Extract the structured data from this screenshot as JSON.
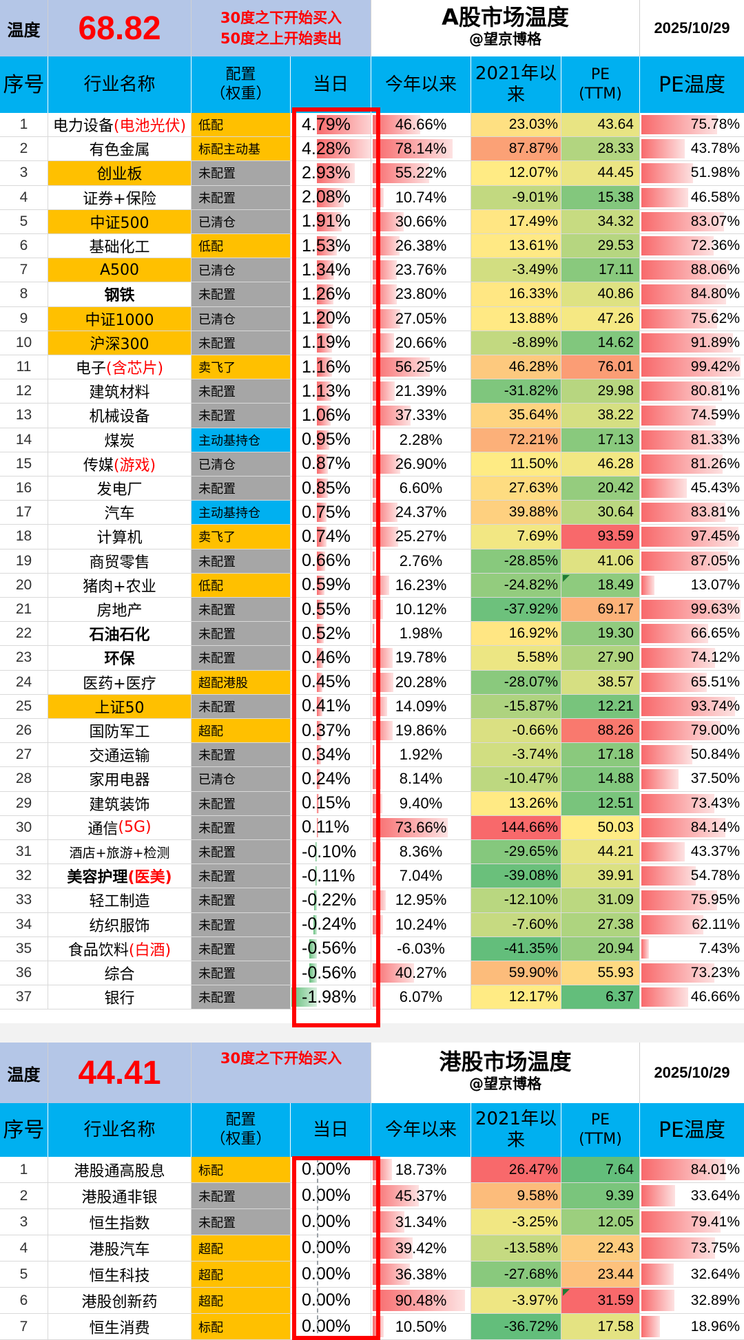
{
  "a_share": {
    "temp_label": "温度",
    "temperature": "68.82",
    "rule_buy": "30度之下开始买入",
    "rule_sell": "50度之上开始卖出",
    "title": "A股市场温度",
    "subtitle": "@望京博格",
    "date": "2025/10/29"
  },
  "hk_share": {
    "temp_label": "温度",
    "temperature": "44.41",
    "rule_buy": "30度之下开始买入",
    "title": "港股市场温度",
    "subtitle": "@望京博格",
    "date": "2025/10/29"
  },
  "columns": {
    "idx": "序号",
    "name": "行业名称",
    "cfg_1": "配置",
    "cfg_2": "（权重）",
    "day": "当日",
    "ytd": "今年以来",
    "since2021_1": "2021年以",
    "since2021_2": "来",
    "pe_1": "PE",
    "pe_2": "(TTM)",
    "pe_temp": "PE温度"
  },
  "colors": {
    "header_blue": "#00b0f0",
    "temp_bg": "#b4c6e7",
    "highlight_orange": "#ffc000",
    "config_gray": "#a6a6a6",
    "alert_red": "#ff0000"
  },
  "a_rows": [
    {
      "idx": "1",
      "name": "电力设备",
      "name_red": "(电池光伏)",
      "hl": false,
      "bold": false,
      "cfg": "低配",
      "cfg_color": "y",
      "day": "4.79%",
      "day_val": 4.79,
      "ytd": "46.66%",
      "ytd_val": 46.66,
      "s21": "23.03%",
      "s21_val": 23.03,
      "pe": "43.64",
      "pe_val": 43.64,
      "pet": "75.78%",
      "pet_val": 75.78
    },
    {
      "idx": "2",
      "name": "有色金属",
      "name_red": "",
      "hl": false,
      "bold": false,
      "cfg": "标配主动基",
      "cfg_color": "y",
      "day": "4.28%",
      "day_val": 4.28,
      "ytd": "78.14%",
      "ytd_val": 78.14,
      "s21": "87.87%",
      "s21_val": 87.87,
      "pe": "28.33",
      "pe_val": 28.33,
      "pet": "43.78%",
      "pet_val": 43.78
    },
    {
      "idx": "3",
      "name": "创业板",
      "name_red": "",
      "hl": true,
      "bold": false,
      "cfg": "未配置",
      "cfg_color": "g",
      "day": "2.93%",
      "day_val": 2.93,
      "ytd": "55.22%",
      "ytd_val": 55.22,
      "s21": "12.07%",
      "s21_val": 12.07,
      "pe": "44.45",
      "pe_val": 44.45,
      "pet": "51.98%",
      "pet_val": 51.98
    },
    {
      "idx": "4",
      "name": "证券+保险",
      "name_red": "",
      "hl": false,
      "bold": false,
      "cfg": "未配置",
      "cfg_color": "g",
      "day": "2.08%",
      "day_val": 2.08,
      "ytd": "10.74%",
      "ytd_val": 10.74,
      "s21": "-9.01%",
      "s21_val": -9.01,
      "pe": "15.38",
      "pe_val": 15.38,
      "pet": "46.58%",
      "pet_val": 46.58
    },
    {
      "idx": "5",
      "name": "中证500",
      "name_red": "",
      "hl": true,
      "bold": false,
      "cfg": "已清仓",
      "cfg_color": "g",
      "day": "1.91%",
      "day_val": 1.91,
      "ytd": "30.66%",
      "ytd_val": 30.66,
      "s21": "17.49%",
      "s21_val": 17.49,
      "pe": "34.32",
      "pe_val": 34.32,
      "pet": "83.07%",
      "pet_val": 83.07
    },
    {
      "idx": "6",
      "name": "基础化工",
      "name_red": "",
      "hl": false,
      "bold": false,
      "cfg": "低配",
      "cfg_color": "y",
      "day": "1.53%",
      "day_val": 1.53,
      "ytd": "26.38%",
      "ytd_val": 26.38,
      "s21": "13.61%",
      "s21_val": 13.61,
      "pe": "29.53",
      "pe_val": 29.53,
      "pet": "72.36%",
      "pet_val": 72.36
    },
    {
      "idx": "7",
      "name": "A500",
      "name_red": "",
      "hl": true,
      "bold": false,
      "cfg": "已清仓",
      "cfg_color": "g",
      "day": "1.34%",
      "day_val": 1.34,
      "ytd": "23.76%",
      "ytd_val": 23.76,
      "s21": "-3.49%",
      "s21_val": -3.49,
      "pe": "17.11",
      "pe_val": 17.11,
      "pet": "88.06%",
      "pet_val": 88.06
    },
    {
      "idx": "8",
      "name": "钢铁",
      "name_red": "",
      "hl": false,
      "bold": true,
      "cfg": "未配置",
      "cfg_color": "g",
      "day": "1.26%",
      "day_val": 1.26,
      "ytd": "23.80%",
      "ytd_val": 23.8,
      "s21": "16.33%",
      "s21_val": 16.33,
      "pe": "40.86",
      "pe_val": 40.86,
      "pet": "84.80%",
      "pet_val": 84.8
    },
    {
      "idx": "9",
      "name": "中证1000",
      "name_red": "",
      "hl": true,
      "bold": false,
      "cfg": "已清仓",
      "cfg_color": "g",
      "day": "1.20%",
      "day_val": 1.2,
      "ytd": "27.05%",
      "ytd_val": 27.05,
      "s21": "13.88%",
      "s21_val": 13.88,
      "pe": "47.26",
      "pe_val": 47.26,
      "pet": "75.62%",
      "pet_val": 75.62
    },
    {
      "idx": "10",
      "name": "沪深300",
      "name_red": "",
      "hl": true,
      "bold": false,
      "cfg": "未配置",
      "cfg_color": "g",
      "day": "1.19%",
      "day_val": 1.19,
      "ytd": "20.66%",
      "ytd_val": 20.66,
      "s21": "-8.89%",
      "s21_val": -8.89,
      "pe": "14.62",
      "pe_val": 14.62,
      "pet": "91.89%",
      "pet_val": 91.89
    },
    {
      "idx": "11",
      "name": "电子",
      "name_red": "(含芯片)",
      "hl": false,
      "bold": false,
      "cfg": "卖飞了",
      "cfg_color": "y",
      "day": "1.16%",
      "day_val": 1.16,
      "ytd": "56.25%",
      "ytd_val": 56.25,
      "s21": "46.28%",
      "s21_val": 46.28,
      "pe": "76.01",
      "pe_val": 76.01,
      "pet": "99.42%",
      "pet_val": 99.42
    },
    {
      "idx": "12",
      "name": "建筑材料",
      "name_red": "",
      "hl": false,
      "bold": false,
      "cfg": "未配置",
      "cfg_color": "g",
      "day": "1.13%",
      "day_val": 1.13,
      "ytd": "21.39%",
      "ytd_val": 21.39,
      "s21": "-31.82%",
      "s21_val": -31.82,
      "pe": "29.98",
      "pe_val": 29.98,
      "pet": "80.81%",
      "pet_val": 80.81
    },
    {
      "idx": "13",
      "name": "机械设备",
      "name_red": "",
      "hl": false,
      "bold": false,
      "cfg": "未配置",
      "cfg_color": "g",
      "day": "1.06%",
      "day_val": 1.06,
      "ytd": "37.33%",
      "ytd_val": 37.33,
      "s21": "35.64%",
      "s21_val": 35.64,
      "pe": "38.22",
      "pe_val": 38.22,
      "pet": "74.59%",
      "pet_val": 74.59
    },
    {
      "idx": "14",
      "name": "煤炭",
      "name_red": "",
      "hl": false,
      "bold": false,
      "cfg": "主动基持仓",
      "cfg_color": "b",
      "day": "0.95%",
      "day_val": 0.95,
      "ytd": "2.28%",
      "ytd_val": 2.28,
      "s21": "72.21%",
      "s21_val": 72.21,
      "pe": "17.13",
      "pe_val": 17.13,
      "pet": "81.33%",
      "pet_val": 81.33
    },
    {
      "idx": "15",
      "name": "传媒",
      "name_red": "(游戏)",
      "hl": false,
      "bold": false,
      "cfg": "已清仓",
      "cfg_color": "g",
      "day": "0.87%",
      "day_val": 0.87,
      "ytd": "26.90%",
      "ytd_val": 26.9,
      "s21": "11.50%",
      "s21_val": 11.5,
      "pe": "46.28",
      "pe_val": 46.28,
      "pet": "81.26%",
      "pet_val": 81.26
    },
    {
      "idx": "16",
      "name": "发电厂",
      "name_red": "",
      "hl": false,
      "bold": false,
      "cfg": "未配置",
      "cfg_color": "g",
      "day": "0.85%",
      "day_val": 0.85,
      "ytd": "6.60%",
      "ytd_val": 6.6,
      "s21": "27.63%",
      "s21_val": 27.63,
      "pe": "20.42",
      "pe_val": 20.42,
      "pet": "45.43%",
      "pet_val": 45.43
    },
    {
      "idx": "17",
      "name": "汽车",
      "name_red": "",
      "hl": false,
      "bold": false,
      "cfg": "主动基持仓",
      "cfg_color": "b",
      "day": "0.75%",
      "day_val": 0.75,
      "ytd": "24.37%",
      "ytd_val": 24.37,
      "s21": "39.88%",
      "s21_val": 39.88,
      "pe": "30.64",
      "pe_val": 30.64,
      "pet": "83.81%",
      "pet_val": 83.81
    },
    {
      "idx": "18",
      "name": "计算机",
      "name_red": "",
      "hl": false,
      "bold": false,
      "cfg": "卖飞了",
      "cfg_color": "y",
      "day": "0.74%",
      "day_val": 0.74,
      "ytd": "25.27%",
      "ytd_val": 25.27,
      "s21": "7.69%",
      "s21_val": 7.69,
      "pe": "93.59",
      "pe_val": 93.59,
      "pet": "97.45%",
      "pet_val": 97.45
    },
    {
      "idx": "19",
      "name": "商贸零售",
      "name_red": "",
      "hl": false,
      "bold": false,
      "cfg": "未配置",
      "cfg_color": "g",
      "day": "0.66%",
      "day_val": 0.66,
      "ytd": "2.76%",
      "ytd_val": 2.76,
      "s21": "-28.85%",
      "s21_val": -28.85,
      "pe": "41.06",
      "pe_val": 41.06,
      "pet": "87.05%",
      "pet_val": 87.05
    },
    {
      "idx": "20",
      "name": "猪肉+农业",
      "name_red": "",
      "hl": false,
      "bold": false,
      "cfg": "低配",
      "cfg_color": "y",
      "day": "0.59%",
      "day_val": 0.59,
      "ytd": "16.23%",
      "ytd_val": 16.23,
      "s21": "-24.82%",
      "s21_val": -24.82,
      "pe": "18.49",
      "pe_val": 18.49,
      "pet": "13.07%",
      "pet_val": 13.07,
      "marker": true
    },
    {
      "idx": "21",
      "name": "房地产",
      "name_red": "",
      "hl": false,
      "bold": false,
      "cfg": "未配置",
      "cfg_color": "g",
      "day": "0.55%",
      "day_val": 0.55,
      "ytd": "10.12%",
      "ytd_val": 10.12,
      "s21": "-37.92%",
      "s21_val": -37.92,
      "pe": "69.17",
      "pe_val": 69.17,
      "pet": "99.63%",
      "pet_val": 99.63
    },
    {
      "idx": "22",
      "name": "石油石化",
      "name_red": "",
      "hl": false,
      "bold": true,
      "cfg": "未配置",
      "cfg_color": "g",
      "day": "0.52%",
      "day_val": 0.52,
      "ytd": "1.98%",
      "ytd_val": 1.98,
      "s21": "16.92%",
      "s21_val": 16.92,
      "pe": "19.30",
      "pe_val": 19.3,
      "pet": "66.65%",
      "pet_val": 66.65
    },
    {
      "idx": "23",
      "name": "环保",
      "name_red": "",
      "hl": false,
      "bold": true,
      "cfg": "未配置",
      "cfg_color": "g",
      "day": "0.46%",
      "day_val": 0.46,
      "ytd": "19.78%",
      "ytd_val": 19.78,
      "s21": "5.58%",
      "s21_val": 5.58,
      "pe": "27.90",
      "pe_val": 27.9,
      "pet": "74.12%",
      "pet_val": 74.12
    },
    {
      "idx": "24",
      "name": "医药+医疗",
      "name_red": "",
      "hl": false,
      "bold": false,
      "cfg": "超配港股",
      "cfg_color": "y",
      "day": "0.45%",
      "day_val": 0.45,
      "ytd": "20.28%",
      "ytd_val": 20.28,
      "s21": "-28.07%",
      "s21_val": -28.07,
      "pe": "38.57",
      "pe_val": 38.57,
      "pet": "65.51%",
      "pet_val": 65.51
    },
    {
      "idx": "25",
      "name": "上证50",
      "name_red": "",
      "hl": true,
      "bold": false,
      "cfg": "未配置",
      "cfg_color": "g",
      "day": "0.41%",
      "day_val": 0.41,
      "ytd": "14.09%",
      "ytd_val": 14.09,
      "s21": "-15.87%",
      "s21_val": -15.87,
      "pe": "12.21",
      "pe_val": 12.21,
      "pet": "93.74%",
      "pet_val": 93.74
    },
    {
      "idx": "26",
      "name": "国防军工",
      "name_red": "",
      "hl": false,
      "bold": false,
      "cfg": "超配",
      "cfg_color": "y",
      "day": "0.37%",
      "day_val": 0.37,
      "ytd": "19.86%",
      "ytd_val": 19.86,
      "s21": "-0.66%",
      "s21_val": -0.66,
      "pe": "88.26",
      "pe_val": 88.26,
      "pet": "79.00%",
      "pet_val": 79.0
    },
    {
      "idx": "27",
      "name": "交通运输",
      "name_red": "",
      "hl": false,
      "bold": false,
      "cfg": "未配置",
      "cfg_color": "g",
      "day": "0.34%",
      "day_val": 0.34,
      "ytd": "1.92%",
      "ytd_val": 1.92,
      "s21": "-3.74%",
      "s21_val": -3.74,
      "pe": "17.18",
      "pe_val": 17.18,
      "pet": "50.84%",
      "pet_val": 50.84
    },
    {
      "idx": "28",
      "name": "家用电器",
      "name_red": "",
      "hl": false,
      "bold": false,
      "cfg": "已清仓",
      "cfg_color": "g",
      "day": "0.24%",
      "day_val": 0.24,
      "ytd": "8.14%",
      "ytd_val": 8.14,
      "s21": "-10.47%",
      "s21_val": -10.47,
      "pe": "14.88",
      "pe_val": 14.88,
      "pet": "37.50%",
      "pet_val": 37.5
    },
    {
      "idx": "29",
      "name": "建筑装饰",
      "name_red": "",
      "hl": false,
      "bold": false,
      "cfg": "未配置",
      "cfg_color": "g",
      "day": "0.15%",
      "day_val": 0.15,
      "ytd": "9.40%",
      "ytd_val": 9.4,
      "s21": "13.26%",
      "s21_val": 13.26,
      "pe": "12.51",
      "pe_val": 12.51,
      "pet": "73.43%",
      "pet_val": 73.43
    },
    {
      "idx": "30",
      "name": "通信",
      "name_red": "(5G)",
      "hl": false,
      "bold": false,
      "cfg": "未配置",
      "cfg_color": "g",
      "day": "0.11%",
      "day_val": 0.11,
      "ytd": "73.66%",
      "ytd_val": 73.66,
      "s21": "144.66%",
      "s21_val": 144.66,
      "pe": "50.03",
      "pe_val": 50.03,
      "pet": "84.14%",
      "pet_val": 84.14
    },
    {
      "idx": "31",
      "name": "酒店+旅游+检测",
      "name_red": "",
      "hl": false,
      "bold": false,
      "small": true,
      "cfg": "未配置",
      "cfg_color": "g",
      "day": "-0.10%",
      "day_val": -0.1,
      "ytd": "8.36%",
      "ytd_val": 8.36,
      "s21": "-29.65%",
      "s21_val": -29.65,
      "pe": "44.21",
      "pe_val": 44.21,
      "pet": "43.37%",
      "pet_val": 43.37
    },
    {
      "idx": "32",
      "name": "美容护理",
      "name_red": "(医美)",
      "hl": false,
      "bold": true,
      "cfg": "未配置",
      "cfg_color": "g",
      "day": "-0.11%",
      "day_val": -0.11,
      "ytd": "7.04%",
      "ytd_val": 7.04,
      "s21": "-39.08%",
      "s21_val": -39.08,
      "pe": "39.91",
      "pe_val": 39.91,
      "pet": "54.78%",
      "pet_val": 54.78
    },
    {
      "idx": "33",
      "name": "轻工制造",
      "name_red": "",
      "hl": false,
      "bold": false,
      "cfg": "未配置",
      "cfg_color": "g",
      "day": "-0.22%",
      "day_val": -0.22,
      "ytd": "12.95%",
      "ytd_val": 12.95,
      "s21": "-12.10%",
      "s21_val": -12.1,
      "pe": "31.09",
      "pe_val": 31.09,
      "pet": "75.95%",
      "pet_val": 75.95
    },
    {
      "idx": "34",
      "name": "纺织服饰",
      "name_red": "",
      "hl": false,
      "bold": false,
      "cfg": "未配置",
      "cfg_color": "g",
      "day": "-0.24%",
      "day_val": -0.24,
      "ytd": "10.24%",
      "ytd_val": 10.24,
      "s21": "-7.60%",
      "s21_val": -7.6,
      "pe": "27.38",
      "pe_val": 27.38,
      "pet": "62.11%",
      "pet_val": 62.11
    },
    {
      "idx": "35",
      "name": "食品饮料",
      "name_red": "(白酒)",
      "hl": false,
      "bold": false,
      "cfg": "未配置",
      "cfg_color": "g",
      "day": "-0.56%",
      "day_val": -0.56,
      "ytd": "-6.03%",
      "ytd_val": -6.03,
      "s21": "-41.35%",
      "s21_val": -41.35,
      "pe": "20.94",
      "pe_val": 20.94,
      "pet": "7.43%",
      "pet_val": 7.43
    },
    {
      "idx": "36",
      "name": "综合",
      "name_red": "",
      "hl": false,
      "bold": false,
      "cfg": "未配置",
      "cfg_color": "g",
      "day": "-0.56%",
      "day_val": -0.56,
      "ytd": "40.27%",
      "ytd_val": 40.27,
      "s21": "59.90%",
      "s21_val": 59.9,
      "pe": "55.93",
      "pe_val": 55.93,
      "pet": "73.23%",
      "pet_val": 73.23
    },
    {
      "idx": "37",
      "name": "银行",
      "name_red": "",
      "hl": false,
      "bold": false,
      "cfg": "未配置",
      "cfg_color": "g",
      "day": "-1.98%",
      "day_val": -1.98,
      "ytd": "6.07%",
      "ytd_val": 6.07,
      "s21": "12.17%",
      "s21_val": 12.17,
      "pe": "6.37",
      "pe_val": 6.37,
      "pet": "46.66%",
      "pet_val": 46.66
    }
  ],
  "hk_rows": [
    {
      "idx": "1",
      "name": "港股通高股息",
      "name_red": "",
      "hl": false,
      "bold": false,
      "cfg": "标配",
      "cfg_color": "y",
      "day": "0.00%",
      "day_val": 0,
      "ytd": "18.73%",
      "ytd_val": 18.73,
      "s21": "26.47%",
      "s21_val": 26.47,
      "pe": "7.64",
      "pe_val": 7.64,
      "pet": "84.01%",
      "pet_val": 84.01
    },
    {
      "idx": "2",
      "name": "港股通非银",
      "name_red": "",
      "hl": false,
      "bold": false,
      "cfg": "未配置",
      "cfg_color": "g",
      "day": "0.00%",
      "day_val": 0,
      "ytd": "45.37%",
      "ytd_val": 45.37,
      "s21": "9.58%",
      "s21_val": 9.58,
      "pe": "9.39",
      "pe_val": 9.39,
      "pet": "33.64%",
      "pet_val": 33.64
    },
    {
      "idx": "3",
      "name": "恒生指数",
      "name_red": "",
      "hl": false,
      "bold": false,
      "cfg": "未配置",
      "cfg_color": "g",
      "day": "0.00%",
      "day_val": 0,
      "ytd": "31.34%",
      "ytd_val": 31.34,
      "s21": "-3.25%",
      "s21_val": -3.25,
      "pe": "12.05",
      "pe_val": 12.05,
      "pet": "79.41%",
      "pet_val": 79.41
    },
    {
      "idx": "4",
      "name": "港股汽车",
      "name_red": "",
      "hl": false,
      "bold": false,
      "cfg": "超配",
      "cfg_color": "y",
      "day": "0.00%",
      "day_val": 0,
      "ytd": "39.42%",
      "ytd_val": 39.42,
      "s21": "-13.58%",
      "s21_val": -13.58,
      "pe": "22.43",
      "pe_val": 22.43,
      "pet": "73.75%",
      "pet_val": 73.75
    },
    {
      "idx": "5",
      "name": "恒生科技",
      "name_red": "",
      "hl": false,
      "bold": false,
      "cfg": "超配",
      "cfg_color": "y",
      "day": "0.00%",
      "day_val": 0,
      "ytd": "36.38%",
      "ytd_val": 36.38,
      "s21": "-27.68%",
      "s21_val": -27.68,
      "pe": "23.44",
      "pe_val": 23.44,
      "pet": "32.64%",
      "pet_val": 32.64
    },
    {
      "idx": "6",
      "name": "港股创新药",
      "name_red": "",
      "hl": false,
      "bold": false,
      "cfg": "超配",
      "cfg_color": "y",
      "day": "0.00%",
      "day_val": 0,
      "ytd": "90.48%",
      "ytd_val": 90.48,
      "s21": "-3.97%",
      "s21_val": -3.97,
      "pe": "31.59",
      "pe_val": 31.59,
      "pet": "32.89%",
      "pet_val": 32.89,
      "marker": true
    },
    {
      "idx": "7",
      "name": "恒生消费",
      "name_red": "",
      "hl": false,
      "bold": false,
      "cfg": "标配",
      "cfg_color": "y",
      "day": "0.00%",
      "day_val": 0,
      "ytd": "10.50%",
      "ytd_val": 10.5,
      "s21": "-36.72%",
      "s21_val": -36.72,
      "pe": "17.58",
      "pe_val": 17.58,
      "pet": "18.96%",
      "pet_val": 18.96
    }
  ]
}
